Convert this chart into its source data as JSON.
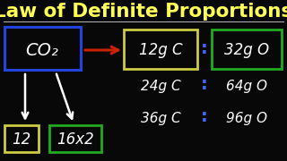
{
  "title": "Law of Definite Proportions",
  "title_color": "#FFFF55",
  "bg_color": "#080808",
  "title_fontsize": 15.5,
  "co2_text": "CO₂",
  "co2_box_color": "#2244DD",
  "arrow_color": "#CC2200",
  "row1_left": "12g C",
  "row1_right": "32g O",
  "row2_left": "24g C",
  "row2_right": "64g O",
  "row3_left": "36g C",
  "row3_right": "96g O",
  "box1_color": "#CCCC44",
  "box2_color": "#22AA22",
  "num12_text": "12",
  "num12_box_color": "#CCCC44",
  "num16x2_text": "16x2",
  "num16x2_box_color": "#22AA22",
  "colon_color": "#4466FF",
  "white": "#FFFFFF",
  "line_color": "#AAAAAA"
}
